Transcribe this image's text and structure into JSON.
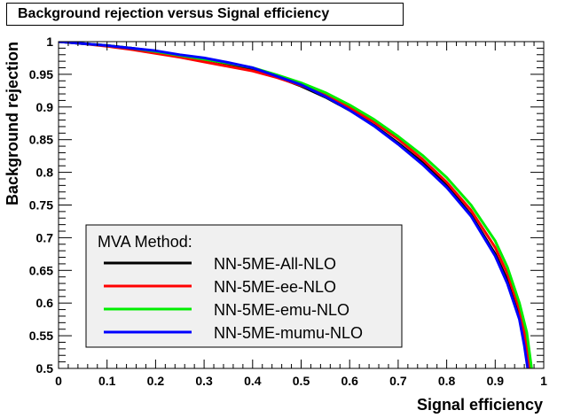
{
  "chart_data": {
    "type": "line",
    "title": "Background rejection versus Signal efficiency",
    "xlabel": "Signal efficiency",
    "ylabel": "Background rejection",
    "xlim": [
      0,
      1
    ],
    "ylim": [
      0.5,
      1
    ],
    "x_ticks": [
      "0",
      "0.1",
      "0.2",
      "0.3",
      "0.4",
      "0.5",
      "0.6",
      "0.7",
      "0.8",
      "0.9",
      "1"
    ],
    "y_ticks": [
      "0.5",
      "0.55",
      "0.6",
      "0.65",
      "0.7",
      "0.75",
      "0.8",
      "0.85",
      "0.9",
      "0.95",
      "1"
    ],
    "grid": false,
    "legend": {
      "title": "MVA Method:",
      "position": "bottom-left"
    },
    "series": [
      {
        "name": "NN-5ME-All-NLO",
        "color": "#000000",
        "points": [
          [
            0,
            1
          ],
          [
            0.05,
            0.997
          ],
          [
            0.1,
            0.994
          ],
          [
            0.15,
            0.99
          ],
          [
            0.2,
            0.985
          ],
          [
            0.25,
            0.979
          ],
          [
            0.3,
            0.973
          ],
          [
            0.35,
            0.966
          ],
          [
            0.4,
            0.958
          ],
          [
            0.45,
            0.946
          ],
          [
            0.5,
            0.932
          ],
          [
            0.55,
            0.915
          ],
          [
            0.6,
            0.895
          ],
          [
            0.65,
            0.872
          ],
          [
            0.7,
            0.845
          ],
          [
            0.75,
            0.815
          ],
          [
            0.8,
            0.78
          ],
          [
            0.85,
            0.735
          ],
          [
            0.9,
            0.675
          ],
          [
            0.925,
            0.635
          ],
          [
            0.95,
            0.58
          ],
          [
            0.96,
            0.54
          ],
          [
            0.968,
            0.5
          ]
        ]
      },
      {
        "name": "NN-5ME-ee-NLO",
        "color": "#ff0000",
        "points": [
          [
            0,
            1
          ],
          [
            0.05,
            0.997
          ],
          [
            0.1,
            0.993
          ],
          [
            0.15,
            0.988
          ],
          [
            0.2,
            0.982
          ],
          [
            0.25,
            0.976
          ],
          [
            0.3,
            0.969
          ],
          [
            0.35,
            0.962
          ],
          [
            0.4,
            0.955
          ],
          [
            0.45,
            0.945
          ],
          [
            0.5,
            0.933
          ],
          [
            0.55,
            0.918
          ],
          [
            0.6,
            0.899
          ],
          [
            0.65,
            0.877
          ],
          [
            0.7,
            0.851
          ],
          [
            0.75,
            0.82
          ],
          [
            0.8,
            0.785
          ],
          [
            0.85,
            0.742
          ],
          [
            0.9,
            0.685
          ],
          [
            0.925,
            0.645
          ],
          [
            0.95,
            0.59
          ],
          [
            0.962,
            0.548
          ],
          [
            0.972,
            0.5
          ]
        ]
      },
      {
        "name": "NN-5ME-emu-NLO",
        "color": "#00ee00",
        "points": [
          [
            0,
            1
          ],
          [
            0.05,
            0.997
          ],
          [
            0.1,
            0.994
          ],
          [
            0.15,
            0.99
          ],
          [
            0.2,
            0.985
          ],
          [
            0.25,
            0.979
          ],
          [
            0.3,
            0.973
          ],
          [
            0.35,
            0.967
          ],
          [
            0.4,
            0.96
          ],
          [
            0.45,
            0.949
          ],
          [
            0.5,
            0.937
          ],
          [
            0.55,
            0.922
          ],
          [
            0.6,
            0.903
          ],
          [
            0.65,
            0.881
          ],
          [
            0.7,
            0.855
          ],
          [
            0.75,
            0.826
          ],
          [
            0.8,
            0.792
          ],
          [
            0.85,
            0.75
          ],
          [
            0.9,
            0.695
          ],
          [
            0.925,
            0.655
          ],
          [
            0.95,
            0.6
          ],
          [
            0.965,
            0.555
          ],
          [
            0.975,
            0.5
          ]
        ]
      },
      {
        "name": "NN-5ME-mumu-NLO",
        "color": "#0000ff",
        "points": [
          [
            0,
            1
          ],
          [
            0.05,
            0.997
          ],
          [
            0.1,
            0.994
          ],
          [
            0.15,
            0.99
          ],
          [
            0.2,
            0.986
          ],
          [
            0.25,
            0.98
          ],
          [
            0.3,
            0.975
          ],
          [
            0.35,
            0.968
          ],
          [
            0.4,
            0.96
          ],
          [
            0.45,
            0.947
          ],
          [
            0.5,
            0.934
          ],
          [
            0.55,
            0.916
          ],
          [
            0.6,
            0.895
          ],
          [
            0.65,
            0.871
          ],
          [
            0.7,
            0.843
          ],
          [
            0.75,
            0.812
          ],
          [
            0.8,
            0.777
          ],
          [
            0.85,
            0.733
          ],
          [
            0.9,
            0.672
          ],
          [
            0.925,
            0.63
          ],
          [
            0.95,
            0.575
          ],
          [
            0.96,
            0.535
          ],
          [
            0.967,
            0.5
          ]
        ]
      }
    ]
  }
}
